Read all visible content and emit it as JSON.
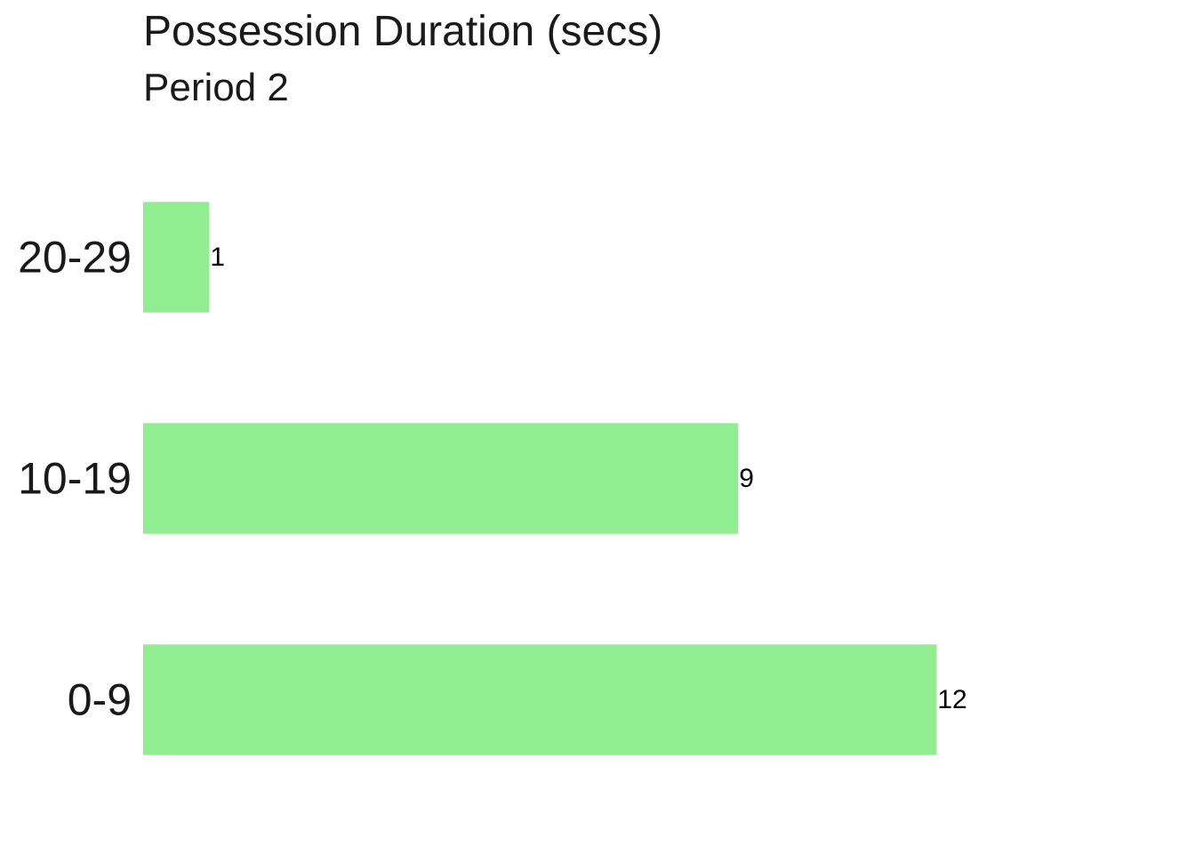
{
  "chart_data": {
    "type": "bar",
    "orientation": "horizontal",
    "title": "Possession Duration (secs)",
    "subtitle": "Period 2",
    "categories": [
      "0-9",
      "10-19",
      "20-29"
    ],
    "values": [
      12,
      9,
      1
    ],
    "data_labels": [
      "12",
      "9",
      "1"
    ],
    "bar_color": "#90EE90",
    "grid": false,
    "legend": "none",
    "xlim": [
      0,
      12.6
    ]
  }
}
